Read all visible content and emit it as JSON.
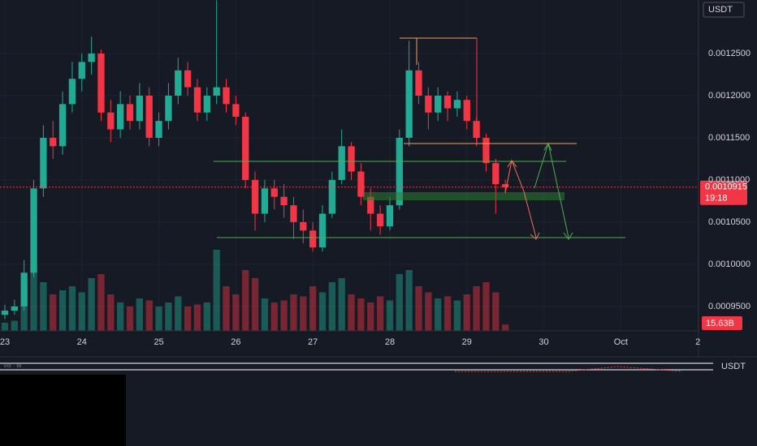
{
  "chart_data": {
    "type": "candlestick",
    "currency": "USDT",
    "volume_indicator": "Vol · W",
    "last_price": 0.0010915,
    "countdown": "19:18",
    "last_volume": 15.63,
    "last_volume_label": "15.63B",
    "up_color": "#22ab94",
    "down_color": "#f23645",
    "grid": true,
    "xlim": [
      -0.063,
      9.009
    ],
    "xticks": [
      {
        "value": 0,
        "label": "23"
      },
      {
        "value": 1,
        "label": "24"
      },
      {
        "value": 2,
        "label": "25"
      },
      {
        "value": 3,
        "label": "26"
      },
      {
        "value": 4,
        "label": "27"
      },
      {
        "value": 5,
        "label": "28"
      },
      {
        "value": 6,
        "label": "29"
      },
      {
        "value": 7,
        "label": "30"
      },
      {
        "value": 8,
        "label": "Oct"
      },
      {
        "value": 9,
        "label": "2"
      }
    ],
    "ylim": [
      0.000921,
      0.0013135
    ],
    "yticks": [
      {
        "value": 0.00095,
        "label": "0.0009500"
      },
      {
        "value": 0.001,
        "label": "0.0010000"
      },
      {
        "value": 0.00105,
        "label": "0.0010500"
      },
      {
        "value": 0.0011,
        "label": "0.0011000"
      },
      {
        "value": 0.00115,
        "label": "0.0011500"
      },
      {
        "value": 0.0012,
        "label": "0.0012000"
      },
      {
        "value": 0.00125,
        "label": "0.0012500"
      }
    ],
    "vlim": [
      0,
      240
    ],
    "x": [
      0,
      0.125,
      0.25,
      0.375,
      0.5,
      0.625,
      0.75,
      0.875,
      1,
      1.125,
      1.25,
      1.375,
      1.5,
      1.625,
      1.75,
      1.875,
      2,
      2.125,
      2.25,
      2.375,
      2.5,
      2.625,
      2.75,
      2.875,
      3,
      3.125,
      3.25,
      3.375,
      3.5,
      3.625,
      3.75,
      3.875,
      4,
      4.125,
      4.25,
      4.375,
      4.5,
      4.625,
      4.75,
      4.875,
      5,
      5.125,
      5.25,
      5.375,
      5.5,
      5.625,
      5.75,
      5.875,
      6,
      6.125,
      6.25,
      6.375,
      6.5
    ],
    "ohlc": [
      [
        0.00094,
        0.000952,
        0.000935,
        0.000945
      ],
      [
        0.000945,
        0.000958,
        0.00094,
        0.00095
      ],
      [
        0.00095,
        0.001005,
        0.000945,
        0.00099
      ],
      [
        0.00099,
        0.0011,
        0.000985,
        0.00109
      ],
      [
        0.00109,
        0.001165,
        0.00108,
        0.00115
      ],
      [
        0.00115,
        0.00117,
        0.001125,
        0.00114
      ],
      [
        0.00114,
        0.001205,
        0.00113,
        0.00119
      ],
      [
        0.00119,
        0.00124,
        0.00118,
        0.00122
      ],
      [
        0.00122,
        0.00125,
        0.001205,
        0.00124
      ],
      [
        0.00124,
        0.00127,
        0.001225,
        0.00125
      ],
      [
        0.00125,
        0.001255,
        0.00117,
        0.00118
      ],
      [
        0.00118,
        0.001195,
        0.001145,
        0.00116
      ],
      [
        0.00116,
        0.001205,
        0.00115,
        0.00119
      ],
      [
        0.00119,
        0.0012,
        0.00116,
        0.00117
      ],
      [
        0.00117,
        0.001215,
        0.00116,
        0.0012
      ],
      [
        0.0012,
        0.00121,
        0.00114,
        0.00115
      ],
      [
        0.00115,
        0.00118,
        0.00114,
        0.00117
      ],
      [
        0.00117,
        0.001215,
        0.00116,
        0.0012
      ],
      [
        0.0012,
        0.001245,
        0.00119,
        0.00123
      ],
      [
        0.00123,
        0.00124,
        0.0012,
        0.00121
      ],
      [
        0.00121,
        0.00122,
        0.00117,
        0.00118
      ],
      [
        0.00118,
        0.00121,
        0.00117,
        0.0012
      ],
      [
        0.0012,
        0.001313,
        0.00119,
        0.00121
      ],
      [
        0.00121,
        0.00122,
        0.00118,
        0.00119
      ],
      [
        0.00119,
        0.0012,
        0.001165,
        0.001175
      ],
      [
        0.001175,
        0.00118,
        0.00109,
        0.0011
      ],
      [
        0.0011,
        0.00111,
        0.00104,
        0.00106
      ],
      [
        0.00106,
        0.0011,
        0.00105,
        0.00109
      ],
      [
        0.00109,
        0.0011,
        0.001065,
        0.00108
      ],
      [
        0.00108,
        0.001095,
        0.001055,
        0.00107
      ],
      [
        0.00107,
        0.00108,
        0.00103,
        0.00105
      ],
      [
        0.00105,
        0.001065,
        0.001025,
        0.00104
      ],
      [
        0.00104,
        0.00105,
        0.001015,
        0.00102
      ],
      [
        0.00102,
        0.00107,
        0.001015,
        0.00106
      ],
      [
        0.00106,
        0.00111,
        0.001055,
        0.0011
      ],
      [
        0.0011,
        0.00116,
        0.001095,
        0.00114
      ],
      [
        0.00114,
        0.001145,
        0.0011,
        0.00111
      ],
      [
        0.00111,
        0.00112,
        0.00107,
        0.00108
      ],
      [
        0.00108,
        0.00109,
        0.00104,
        0.00106
      ],
      [
        0.00106,
        0.00107,
        0.001035,
        0.001045
      ],
      [
        0.001045,
        0.00108,
        0.00104,
        0.00107
      ],
      [
        0.00107,
        0.00116,
        0.001065,
        0.00115
      ],
      [
        0.00115,
        0.001265,
        0.00114,
        0.00123
      ],
      [
        0.00123,
        0.00124,
        0.00119,
        0.0012
      ],
      [
        0.0012,
        0.00121,
        0.00116,
        0.00118
      ],
      [
        0.00118,
        0.00121,
        0.00117,
        0.0012
      ],
      [
        0.0012,
        0.001205,
        0.00117,
        0.001185
      ],
      [
        0.001185,
        0.001205,
        0.001175,
        0.001195
      ],
      [
        0.001195,
        0.0012,
        0.00116,
        0.00117
      ],
      [
        0.00117,
        0.001175,
        0.00114,
        0.00115
      ],
      [
        0.00115,
        0.001155,
        0.00111,
        0.00112
      ],
      [
        0.00112,
        0.001125,
        0.00106,
        0.001095
      ],
      [
        0.001095,
        0.0011,
        0.001085,
        0.0010915
      ]
    ],
    "volume": [
      20,
      25,
      110,
      160,
      120,
      90,
      100,
      110,
      95,
      130,
      140,
      90,
      70,
      60,
      80,
      75,
      60,
      70,
      85,
      60,
      65,
      70,
      200,
      110,
      90,
      150,
      130,
      80,
      70,
      75,
      90,
      85,
      110,
      95,
      120,
      130,
      90,
      80,
      70,
      85,
      75,
      140,
      150,
      110,
      95,
      80,
      85,
      75,
      90,
      110,
      120,
      95,
      15.63
    ]
  }
}
